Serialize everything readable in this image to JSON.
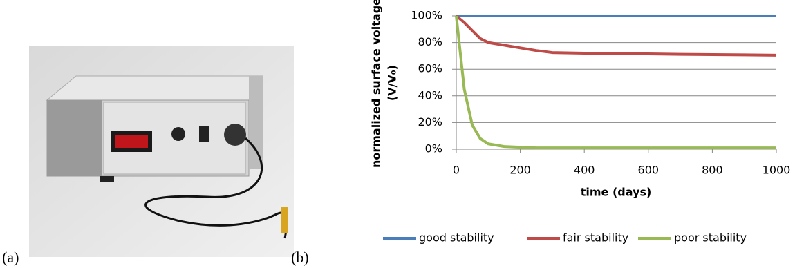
{
  "panel_labels": [
    "(a)",
    "(b)"
  ],
  "chart_data": {
    "type": "line",
    "ylabel": "normalized surface voltage",
    "ylabel_line2": "(V/V₀)",
    "xlabel": "time (days)",
    "x": [
      0,
      25,
      50,
      75,
      100,
      150,
      200,
      250,
      300,
      400,
      500,
      600,
      700,
      800,
      900,
      1000
    ],
    "series": [
      {
        "name": "good stability",
        "color": "#4a7ebb",
        "values": [
          100,
          100,
          100,
          100,
          100,
          100,
          100,
          100,
          100,
          100,
          100,
          100,
          100,
          100,
          100,
          100
        ]
      },
      {
        "name": "fair stability",
        "color": "#be4b48",
        "values": [
          100,
          95,
          89,
          83,
          80,
          78,
          76,
          74,
          72.5,
          72,
          71.8,
          71.5,
          71.2,
          71,
          70.8,
          70.5
        ]
      },
      {
        "name": "poor stability",
        "color": "#98b954",
        "values": [
          100,
          45,
          18,
          8,
          4,
          2,
          1.5,
          1,
          1,
          1,
          1,
          1,
          1,
          1,
          1,
          1
        ]
      }
    ],
    "xlim": [
      0,
      1000
    ],
    "xticks": [
      0,
      200,
      400,
      600,
      800,
      1000
    ],
    "ylim": [
      0,
      100
    ],
    "yticks": [
      {
        "value": 0,
        "label": "0%"
      },
      {
        "value": 20,
        "label": "20%"
      },
      {
        "value": 40,
        "label": "40%"
      },
      {
        "value": 60,
        "label": "60%"
      },
      {
        "value": 80,
        "label": "80%"
      },
      {
        "value": 100,
        "label": "100%"
      }
    ],
    "grid": true,
    "legend": "bottom"
  }
}
